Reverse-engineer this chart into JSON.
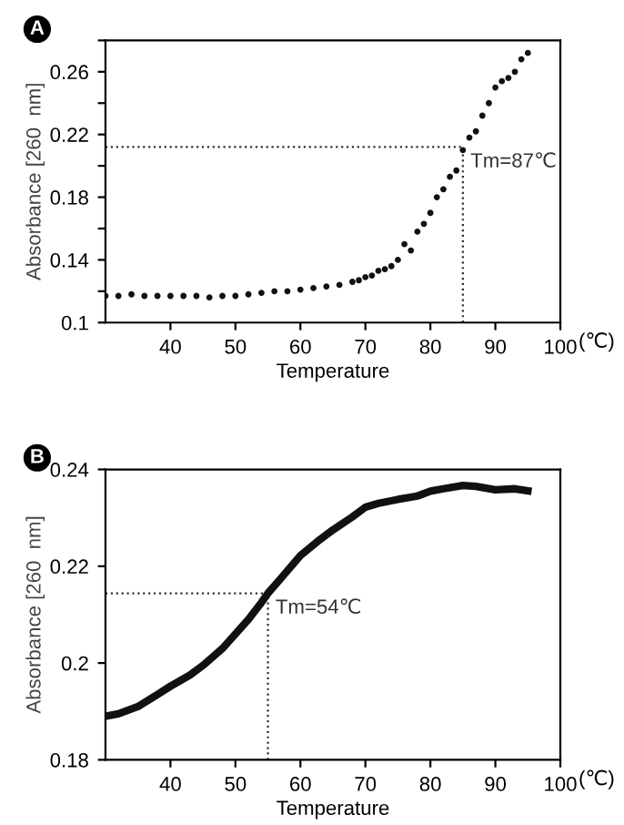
{
  "chart_data": [
    {
      "type": "scatter",
      "title": "A",
      "xlabel": "Temperature",
      "ylabel": "Absorbance [260  nm]",
      "x": [
        30,
        32,
        34,
        36,
        38,
        40,
        42,
        44,
        46,
        48,
        50,
        52,
        54,
        56,
        58,
        60,
        62,
        64,
        66,
        68,
        69,
        70,
        71,
        72,
        73,
        74,
        75,
        76,
        77,
        78,
        79,
        80,
        81,
        82,
        83,
        84,
        85,
        86,
        87,
        88,
        89,
        90,
        91,
        92,
        93,
        94,
        95
      ],
      "series": [
        {
          "color": "#111111",
          "values": [
            0.117,
            0.117,
            0.118,
            0.117,
            0.117,
            0.117,
            0.117,
            0.117,
            0.116,
            0.117,
            0.117,
            0.118,
            0.119,
            0.12,
            0.12,
            0.121,
            0.122,
            0.123,
            0.124,
            0.126,
            0.127,
            0.129,
            0.13,
            0.133,
            0.134,
            0.136,
            0.14,
            0.15,
            0.146,
            0.158,
            0.163,
            0.17,
            0.18,
            0.185,
            0.193,
            0.197,
            0.21,
            0.218,
            0.222,
            0.232,
            0.24,
            0.25,
            0.254,
            0.256,
            0.26,
            0.268,
            0.272
          ]
        }
      ],
      "marker": "circle",
      "xlim": [
        30,
        100
      ],
      "xticks": [
        40,
        50,
        60,
        70,
        80,
        90,
        100
      ],
      "ylim": [
        0.1,
        0.28
      ],
      "yticks": [
        0.1,
        {
          "value": 0.12,
          "label": null
        },
        0.14,
        {
          "value": 0.16,
          "label": null
        },
        0.18,
        {
          "value": 0.2,
          "label": null
        },
        0.22,
        {
          "value": 0.24,
          "label": null
        },
        0.26,
        {
          "value": 0.28,
          "label": null
        }
      ],
      "ref_lines": [
        {
          "axis": "y",
          "value": 0.212,
          "line_style": "dotted",
          "color": "#333333"
        },
        {
          "axis": "x",
          "value": 85,
          "line_style": "dotted",
          "color": "#333333"
        }
      ],
      "annotations": [
        {
          "text": "Tm=87℃",
          "x": 85,
          "y": 0.212
        },
        "(℃)"
      ],
      "grid": false,
      "legend": false
    },
    {
      "type": "line",
      "title": "B",
      "xlabel": "Temperature",
      "ylabel": "Absorbance [260  nm]",
      "x": [
        30,
        32,
        35,
        38,
        40,
        43,
        45,
        48,
        50,
        52,
        54,
        55,
        57,
        60,
        63,
        65,
        68,
        70,
        72,
        75,
        78,
        80,
        82,
        85,
        87,
        90,
        93,
        95
      ],
      "series": [
        {
          "color": "#111111",
          "values": [
            0.189,
            0.1895,
            0.191,
            0.1935,
            0.1952,
            0.1975,
            0.1995,
            0.203,
            0.206,
            0.209,
            0.2125,
            0.2144,
            0.2175,
            0.2222,
            0.2255,
            0.2275,
            0.2302,
            0.2322,
            0.233,
            0.2338,
            0.2345,
            0.2355,
            0.236,
            0.2367,
            0.2365,
            0.2358,
            0.236,
            0.2356
          ]
        }
      ],
      "line_style": "solid",
      "marker": "none",
      "xlim": [
        30,
        100
      ],
      "xticks": [
        40,
        50,
        60,
        70,
        80,
        90,
        100
      ],
      "ylim": [
        0.18,
        0.24
      ],
      "yticks": [
        {
          "value": 0.18,
          "label": "0.18"
        },
        {
          "value": 0.2,
          "label": "0.2"
        },
        {
          "value": 0.22,
          "label": "0.22"
        },
        {
          "value": 0.24,
          "label": "0.24"
        }
      ],
      "ref_lines": [
        {
          "axis": "y",
          "value": 0.2144,
          "line_style": "dotted",
          "color": "#333333"
        },
        {
          "axis": "x",
          "value": 55,
          "line_style": "dotted",
          "color": "#333333"
        }
      ],
      "annotations": [
        {
          "text": "Tm=54℃",
          "x": 55,
          "y": 0.2144
        },
        "(℃)"
      ],
      "grid": false,
      "legend": false
    }
  ]
}
